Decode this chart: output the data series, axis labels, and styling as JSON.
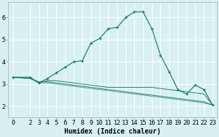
{
  "x": [
    0,
    2,
    3,
    4,
    5,
    6,
    7,
    8,
    9,
    10,
    11,
    12,
    13,
    14,
    15,
    16,
    17,
    18,
    19,
    20,
    21,
    22,
    23
  ],
  "line1": [
    3.3,
    3.3,
    3.05,
    3.25,
    3.5,
    3.75,
    4.0,
    4.05,
    4.85,
    5.05,
    5.5,
    5.55,
    6.0,
    6.25,
    6.25,
    5.5,
    4.3,
    3.55,
    2.75,
    2.55,
    2.95,
    2.75,
    2.05
  ],
  "line2": [
    3.3,
    3.3,
    3.05,
    3.15,
    3.15,
    3.1,
    3.05,
    3.0,
    2.95,
    2.9,
    2.85,
    2.85,
    2.85,
    2.85,
    2.85,
    2.85,
    2.8,
    2.75,
    2.7,
    2.65,
    2.6,
    2.55,
    2.05
  ],
  "line3": [
    3.3,
    3.25,
    3.1,
    3.1,
    3.05,
    3.0,
    2.95,
    2.9,
    2.85,
    2.8,
    2.75,
    2.7,
    2.65,
    2.6,
    2.55,
    2.5,
    2.45,
    2.4,
    2.35,
    2.3,
    2.25,
    2.2,
    2.05
  ],
  "line4": [
    3.3,
    3.25,
    3.05,
    3.05,
    3.0,
    2.95,
    2.9,
    2.85,
    2.8,
    2.75,
    2.7,
    2.65,
    2.6,
    2.55,
    2.5,
    2.45,
    2.4,
    2.35,
    2.3,
    2.25,
    2.2,
    2.15,
    2.05
  ],
  "color": "#1a7a6e",
  "bg_color": "#d8f0f0",
  "grid_major_color": "#ffffff",
  "grid_minor_color": "#c0e0e0",
  "xlabel": "Humidex (Indice chaleur)",
  "ylim": [
    1.5,
    6.7
  ],
  "xlim": [
    -0.5,
    23.5
  ],
  "yticks": [
    2,
    3,
    4,
    5,
    6
  ],
  "xticks": [
    0,
    2,
    3,
    4,
    5,
    6,
    7,
    8,
    9,
    10,
    11,
    12,
    13,
    14,
    15,
    16,
    17,
    18,
    19,
    20,
    21,
    22,
    23
  ],
  "xlabel_fontsize": 7,
  "tick_fontsize": 6.5,
  "fig_width": 3.2,
  "fig_height": 2.0,
  "dpi": 100
}
